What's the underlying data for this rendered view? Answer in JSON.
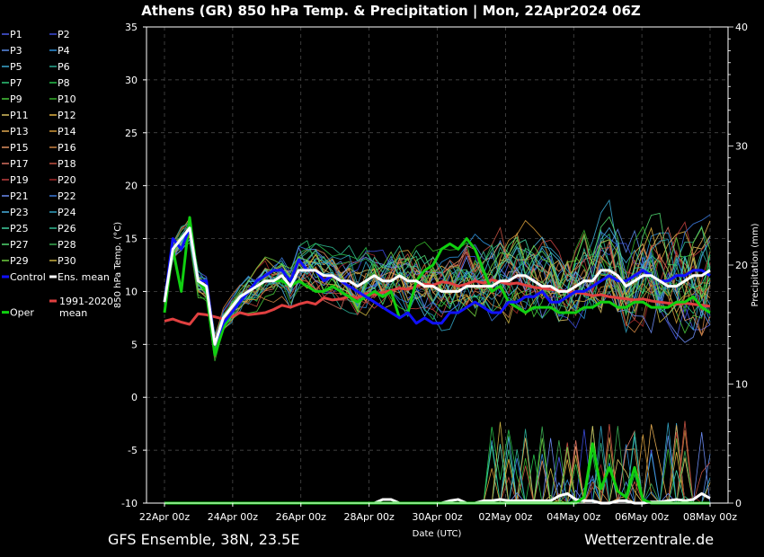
{
  "chart_data": {
    "type": "line",
    "title": "Athens  (GR)  850 hPa Temp. & Precipitation | Mon, 22Apr2024 06Z",
    "xlabel": "Date (UTC)",
    "ylabel": "850 hPa Temp. (°C)",
    "y2label": "Precipitation (mm)",
    "ylim": [
      -10,
      35
    ],
    "y2lim": [
      0,
      40
    ],
    "yticks": [
      "35",
      "30",
      "25",
      "20",
      "15",
      "10",
      "5",
      "0",
      "-5",
      "-10"
    ],
    "y2ticks": [
      "40",
      "30",
      "20",
      "10",
      "0"
    ],
    "xlim": [
      "2024-04-22T00:00",
      "2024-05-08T00:00"
    ],
    "xticks": [
      "22Apr 00z",
      "24Apr 00z",
      "26Apr 00z",
      "28Apr 00z",
      "30Apr 00z",
      "02May 00z",
      "04May 00z",
      "06May 00z",
      "08May 00z"
    ],
    "grid": true,
    "footer_left": "GFS Ensemble, 38N, 23.5E",
    "footer_right": "Wetterzentrale.de",
    "legend": [
      {
        "label": "P1",
        "color": "#4a5be8"
      },
      {
        "label": "P2",
        "color": "#3a4ad8"
      },
      {
        "label": "P3",
        "color": "#5a8ce8"
      },
      {
        "label": "P4",
        "color": "#2e8fd8"
      },
      {
        "label": "P5",
        "color": "#3aa8d0"
      },
      {
        "label": "P6",
        "color": "#2aa890"
      },
      {
        "label": "P7",
        "color": "#2ec87a"
      },
      {
        "label": "P8",
        "color": "#27c04a"
      },
      {
        "label": "P9",
        "color": "#48c83a"
      },
      {
        "label": "P10",
        "color": "#34b02a"
      },
      {
        "label": "P11",
        "color": "#d8c060"
      },
      {
        "label": "P12",
        "color": "#e0b040"
      },
      {
        "label": "P13",
        "color": "#e0a850"
      },
      {
        "label": "P14",
        "color": "#d09838"
      },
      {
        "label": "P15",
        "color": "#e09060"
      },
      {
        "label": "P16",
        "color": "#c88040"
      },
      {
        "label": "P17",
        "color": "#d87060"
      },
      {
        "label": "P18",
        "color": "#c05040"
      },
      {
        "label": "P19",
        "color": "#c04040"
      },
      {
        "label": "P20",
        "color": "#a02828"
      },
      {
        "label": "P21",
        "color": "#6a8af0"
      },
      {
        "label": "P22",
        "color": "#3a78d8"
      },
      {
        "label": "P23",
        "color": "#48b0e0"
      },
      {
        "label": "P24",
        "color": "#30a0c0"
      },
      {
        "label": "P25",
        "color": "#40d0a0"
      },
      {
        "label": "P26",
        "color": "#30b890"
      },
      {
        "label": "P27",
        "color": "#50d870"
      },
      {
        "label": "P28",
        "color": "#38a850"
      },
      {
        "label": "P29",
        "color": "#70d040"
      },
      {
        "label": "P30",
        "color": "#c8b040"
      },
      {
        "label": "Control",
        "color": "#1010ff"
      },
      {
        "label": "Ens. mean",
        "color": "#ffffff"
      },
      {
        "label": "Oper",
        "color": "#10d010"
      },
      {
        "label": "1991-2020 mean",
        "color": "#e04040"
      }
    ],
    "series": [
      {
        "name": "Ens. mean",
        "color": "#ffffff",
        "width": 3,
        "values": [
          9,
          14,
          15,
          16,
          11,
          10.5,
          5,
          7.5,
          8.5,
          9.5,
          10,
          10.5,
          11,
          11,
          11.5,
          10.5,
          12,
          12,
          12,
          11.5,
          11.5,
          11,
          11,
          10.5,
          11,
          11.5,
          11,
          11,
          11.5,
          11,
          11,
          10.5,
          10.5,
          10,
          10,
          10,
          10.5,
          10.5,
          10.5,
          10.5,
          11,
          11,
          11.5,
          11.5,
          11,
          10.5,
          10.5,
          10,
          10,
          10.5,
          11,
          11,
          12,
          12,
          11.5,
          10.5,
          11,
          11.5,
          11.5,
          11,
          10.5,
          10.5,
          11,
          11.5,
          11.5,
          12
        ]
      },
      {
        "name": "Control",
        "color": "#1010ff",
        "width": 3,
        "values": [
          9,
          15,
          14,
          16,
          11,
          11,
          5,
          7,
          8,
          9,
          10,
          11,
          11.5,
          12,
          12,
          11,
          13,
          12,
          12,
          11,
          11.5,
          11,
          10.5,
          10,
          9.5,
          9,
          8.5,
          8,
          7.5,
          8,
          7,
          7.5,
          7,
          7,
          8,
          8,
          8.5,
          9,
          8.5,
          8,
          8,
          9,
          9,
          9.5,
          9.5,
          10,
          9,
          9,
          9.5,
          10,
          10,
          10.5,
          11,
          11.5,
          11,
          11,
          11.5,
          12,
          11.5,
          11,
          11,
          11.5,
          11.5,
          12,
          12,
          11.5
        ]
      },
      {
        "name": "Oper",
        "color": "#10d010",
        "width": 3,
        "values": [
          8,
          14,
          10,
          17,
          11,
          10,
          4,
          6.5,
          8,
          9,
          10,
          10.5,
          11,
          11,
          11,
          10.5,
          11,
          10.5,
          10,
          10,
          10.5,
          10,
          9.5,
          9,
          9.5,
          10,
          9.5,
          10,
          7.5,
          8,
          11,
          12,
          12.5,
          14,
          14.5,
          14,
          15,
          14,
          12,
          10,
          10.5,
          9,
          8.5,
          8,
          8.5,
          8.5,
          8.5,
          8,
          8,
          8,
          8.5,
          8.5,
          9,
          9,
          8.5,
          8.5,
          9,
          9,
          8.5,
          8.5,
          8.5,
          9,
          9,
          9.5,
          8.5,
          8
        ]
      },
      {
        "name": "1991-2020 mean",
        "color": "#e04040",
        "width": 3,
        "values": [
          7.2,
          7.4,
          7.1,
          6.9,
          7.9,
          7.8,
          7.6,
          7.4,
          7.6,
          8.0,
          7.8,
          7.9,
          8.0,
          8.3,
          8.7,
          8.5,
          8.8,
          9.0,
          8.8,
          9.4,
          9.2,
          9.3,
          9.5,
          9.4,
          9.8,
          9.7,
          9.9,
          10.1,
          10.3,
          10.2,
          10.5,
          10.7,
          10.6,
          10.9,
          10.8,
          10.5,
          10.7,
          11.0,
          10.8,
          11.1,
          10.9,
          10.7,
          10.8,
          10.6,
          10.4,
          10.3,
          10.2,
          10.1,
          10.0,
          9.9,
          9.8,
          9.6,
          9.7,
          9.5,
          9.4,
          9.3,
          9.2,
          9.3,
          9.1,
          9.0,
          8.9,
          8.8,
          8.9,
          8.8,
          8.7,
          8.6
        ]
      },
      {
        "name": "Oper precipitation",
        "color": "#10d010",
        "width": 3,
        "axis": "y2",
        "values": [
          0,
          0,
          0,
          0,
          0,
          0,
          0,
          0,
          0,
          0,
          0,
          0,
          0,
          0,
          0,
          0,
          0,
          0,
          0,
          0,
          0,
          0,
          0,
          0,
          0,
          0,
          0,
          0,
          0,
          0,
          0,
          0,
          0,
          0,
          0,
          0,
          0,
          0,
          0,
          0,
          0,
          0,
          0,
          0,
          0,
          0,
          0,
          0,
          0,
          0,
          0.5,
          5,
          1.2,
          3,
          1,
          0.5,
          3,
          0.3,
          0,
          0,
          0,
          0,
          0,
          0,
          0,
          0
        ]
      },
      {
        "name": "Ens. mean precipitation",
        "color": "#ffffff",
        "width": 3,
        "axis": "y2",
        "values": [
          0,
          0,
          0,
          0,
          0,
          0,
          0,
          0,
          0,
          0,
          0,
          0,
          0,
          0,
          0,
          0,
          0,
          0,
          0,
          0,
          0,
          0,
          0,
          0,
          0,
          0,
          0.3,
          0.3,
          0,
          0,
          0,
          0,
          0,
          0,
          0.2,
          0.3,
          0,
          0,
          0.2,
          0.2,
          0.3,
          0.2,
          0.2,
          0.2,
          0.2,
          0.2,
          0.2,
          0.6,
          0.8,
          0.3,
          0.2,
          0.2,
          0,
          0,
          0.2,
          0.2,
          0,
          0,
          0.1,
          0.1,
          0.2,
          0.3,
          0.2,
          0.3,
          0.8,
          0.4
        ]
      }
    ]
  }
}
